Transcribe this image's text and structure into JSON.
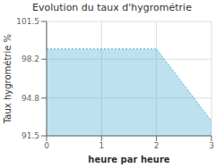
{
  "chart_data": {
    "type": "area",
    "title": "Evolution du taux d'hygrométrie",
    "xlabel": "heure par heure",
    "ylabel": "Taux hygrométrie %",
    "x": [
      0,
      2,
      3
    ],
    "values": [
      99.1,
      99.1,
      92.8
    ],
    "color": "#5ab4d6",
    "line_style": "dotted",
    "xlim": [
      0,
      3
    ],
    "ylim": [
      91.5,
      101.5
    ],
    "xticks": [
      0,
      1,
      2,
      3
    ],
    "yticks": [
      91.5,
      94.8,
      98.2,
      101.5
    ],
    "grid": true
  }
}
